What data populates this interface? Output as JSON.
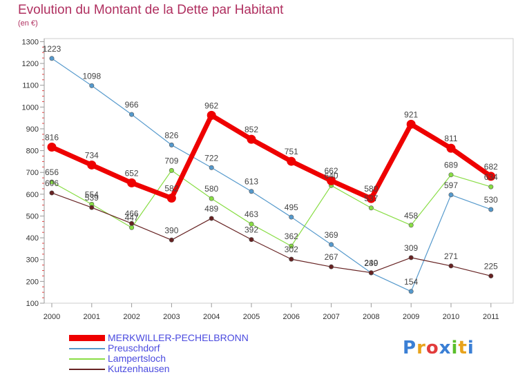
{
  "header": {
    "title": "Evolution du Montant de la Dette par Habitant",
    "subtitle": "(en €)"
  },
  "logo": {
    "text": "Proxiti"
  },
  "chart_data": {
    "type": "line",
    "title": "Evolution du Montant de la Dette par Habitant",
    "subtitle": "(en €)",
    "x": [
      "2000",
      "2001",
      "2002",
      "2003",
      "2004",
      "2005",
      "2006",
      "2007",
      "2008",
      "2009",
      "2010",
      "2011"
    ],
    "ylim": [
      100,
      1300
    ],
    "yticks": [
      100,
      200,
      300,
      400,
      500,
      600,
      700,
      800,
      900,
      1000,
      1100,
      1200,
      1300
    ],
    "grid": false,
    "legend_position": "bottom-left",
    "series": [
      {
        "name": "MERKWILLER-PECHELBRONN",
        "color": "#ee0000",
        "values": [
          816,
          734,
          652,
          582,
          962,
          852,
          751,
          662,
          580,
          921,
          811,
          682
        ]
      },
      {
        "name": "Preuschdorf",
        "color": "#5599cc",
        "values": [
          1223,
          1098,
          966,
          826,
          722,
          613,
          495,
          369,
          239,
          154,
          597,
          530
        ]
      },
      {
        "name": "Lampertsloch",
        "color": "#88dd44",
        "values": [
          656,
          554,
          447,
          709,
          580,
          463,
          362,
          640,
          537,
          458,
          689,
          634
        ]
      },
      {
        "name": "Kutzenhausen",
        "color": "#662222",
        "values": [
          606,
          539,
          466,
          390,
          489,
          392,
          302,
          267,
          240,
          309,
          271,
          225
        ]
      }
    ]
  }
}
